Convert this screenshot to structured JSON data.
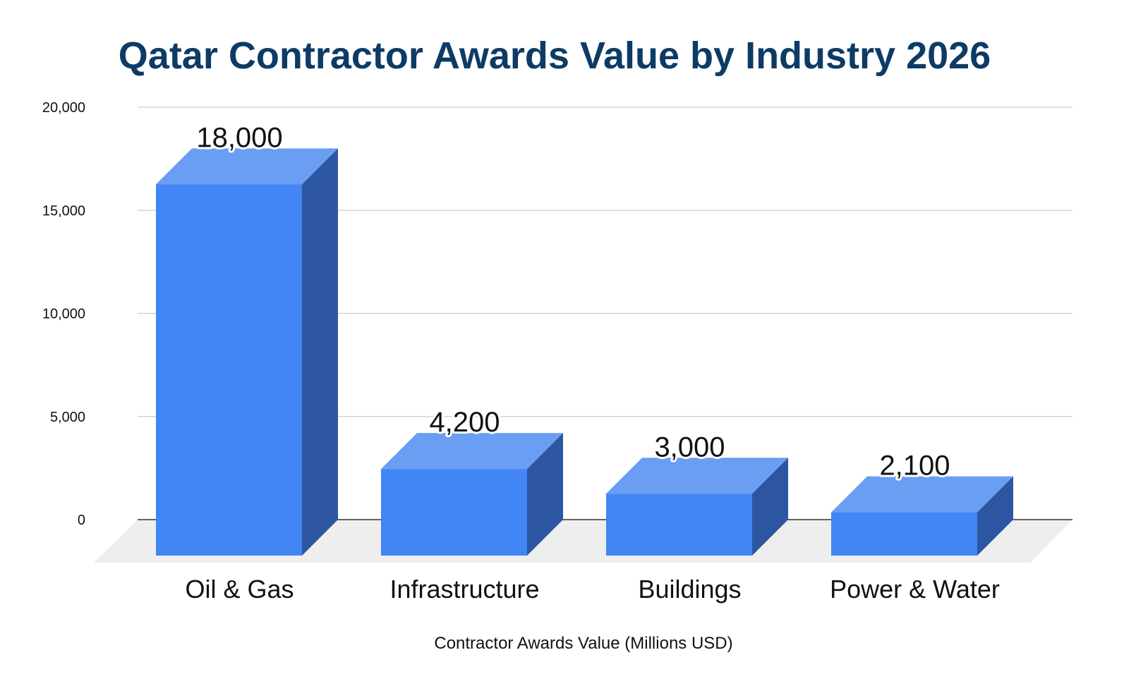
{
  "chart_data": {
    "type": "bar",
    "title": "Qatar Contractor Awards Value by Industry 2026",
    "xlabel": "Contractor Awards Value (Millions USD)",
    "ylabel": "",
    "categories": [
      "Oil & Gas",
      "Infrastructure",
      "Buildings",
      "Power & Water"
    ],
    "values": [
      18000,
      4200,
      3000,
      2100
    ],
    "value_labels": [
      "18,000",
      "4,200",
      "3,000",
      "2,100"
    ],
    "ylim": [
      0,
      20000
    ],
    "yticks": [
      {
        "value": 0,
        "label": "0"
      },
      {
        "value": 5000,
        "label": "5,000"
      },
      {
        "value": 10000,
        "label": "10,000"
      },
      {
        "value": 15000,
        "label": "15,000"
      },
      {
        "value": 20000,
        "label": "20,000"
      }
    ],
    "grid": true,
    "legend": "none",
    "style": "3d-bar"
  },
  "colors": {
    "title": "#0d3b66",
    "bar_front": "#4285f4",
    "bar_top": "#6a9ef2",
    "bar_side": "#2d56a2",
    "grid": "#cccccc",
    "axis": "#333333",
    "floor": "#eeeeee"
  }
}
